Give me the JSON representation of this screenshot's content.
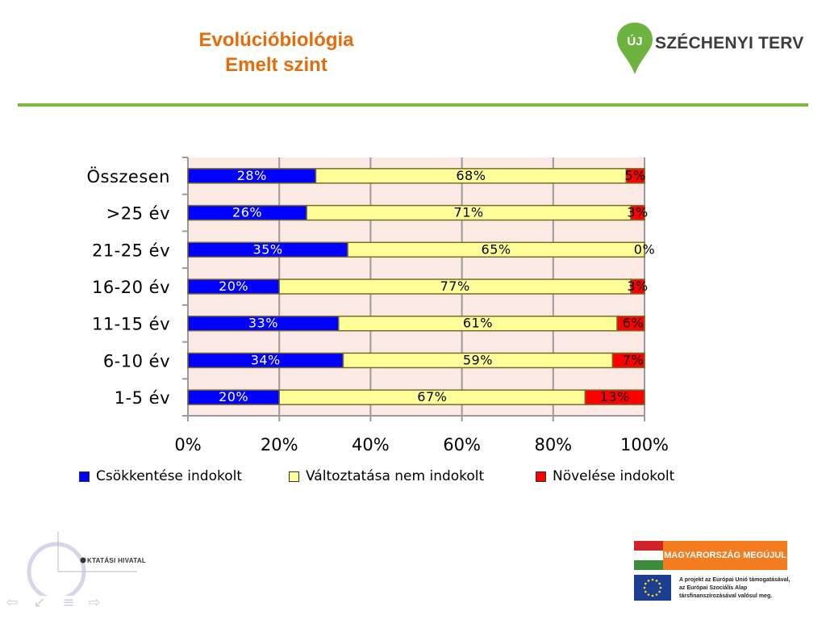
{
  "header": {
    "title_line1": "Evolúcióbiológia",
    "title_line2": "Emelt szint",
    "logo_uj": "ÚJ",
    "logo_text": "SZÉCHENYI TERV"
  },
  "colors": {
    "title": "#e46c0a",
    "rule": "#7dbb3c",
    "plot_bg": "#fbe9e3",
    "series": [
      "#0000ff",
      "#ffff99",
      "#ff0000"
    ]
  },
  "chart_data": {
    "type": "bar",
    "orientation": "horizontal",
    "stacked": true,
    "categories": [
      "Összesen",
      ">25 év",
      "21-25 év",
      "16-20 év",
      "11-15 év",
      "6-10 év",
      "1-5 év"
    ],
    "series": [
      {
        "name": "Csökkentése indokolt",
        "values": [
          28,
          26,
          35,
          20,
          33,
          34,
          20
        ],
        "labels": [
          "28%",
          "26%",
          "35%",
          "20%",
          "33%",
          "34%",
          "20%"
        ]
      },
      {
        "name": "Változtatása nem indokolt",
        "values": [
          68,
          71,
          65,
          77,
          61,
          59,
          67
        ],
        "labels": [
          "68%",
          "71%",
          "65%",
          "77%",
          "61%",
          "59%",
          "67%"
        ]
      },
      {
        "name": "Növelése indokolt",
        "values": [
          5,
          3,
          0,
          3,
          6,
          7,
          13
        ],
        "labels": [
          "5%",
          "3%",
          "0%",
          "3%",
          "6%",
          "7%",
          "13%"
        ]
      }
    ],
    "xlim": [
      0,
      100
    ],
    "xticks": [
      "0%",
      "20%",
      "40%",
      "60%",
      "80%",
      "100%"
    ],
    "grid": true,
    "legend_position": "bottom"
  },
  "legend": {
    "item1": "Csökkentése indokolt",
    "item2": "Változtatása nem indokolt",
    "item3": "Növelése indokolt"
  },
  "footer": {
    "oh_logo_text": "KTATÁSI HIVATAL",
    "mm_label": "MAGYARORSZÁG MEGÚJUL",
    "eu_text_line1": "A projekt az Európai Unió támogatásával,",
    "eu_text_line2": "az Európai Szociális Alap",
    "eu_text_line3": "társfinanszírozásával valósul meg."
  }
}
